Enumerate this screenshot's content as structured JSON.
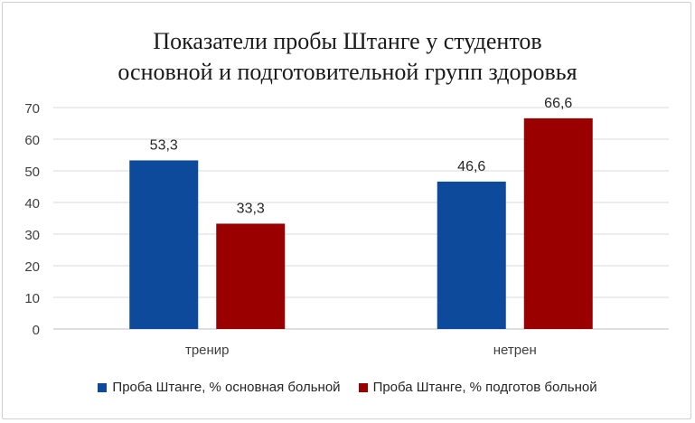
{
  "chart_data": {
    "type": "bar",
    "title_lines": [
      "Показатели пробы Штанге у студентов",
      "основной и подготовительной групп здоровья"
    ],
    "categories": [
      "тренир",
      "нетрен"
    ],
    "series": [
      {
        "name": "Проба Штанге, % основная больной",
        "color": "#0d4a9c",
        "values": [
          53.3,
          46.6
        ],
        "labels": [
          "53,3",
          "46,6"
        ]
      },
      {
        "name": "Проба Штанге, % подготов больной",
        "color": "#9b0000",
        "values": [
          33.3,
          66.6
        ],
        "labels": [
          "33,3",
          "66,6"
        ]
      }
    ],
    "ylim": [
      0,
      70
    ],
    "yticks": [
      0,
      10,
      20,
      30,
      40,
      50,
      60,
      70
    ],
    "xlabel": "",
    "ylabel": "",
    "grid": true,
    "legend_position": "bottom"
  }
}
